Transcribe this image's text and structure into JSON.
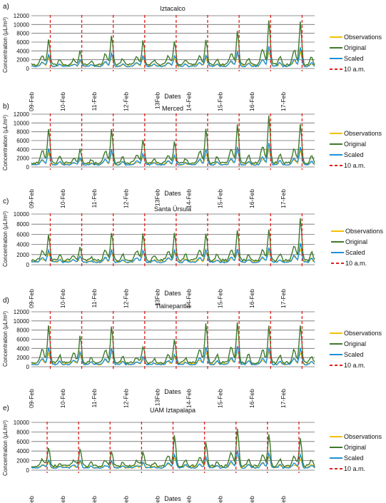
{
  "ylabel": "Concentration (µL/m³)",
  "xlabel": "Dates",
  "x_ticks": [
    "09-Feb",
    "10-Feb",
    "11-Feb",
    "12-Feb",
    "13Feb",
    "14-Feb",
    "15-Feb",
    "16-Feb",
    "17-Feb"
  ],
  "legend": [
    "Observations",
    "Original",
    "Scaled",
    "10 a.m."
  ],
  "colors": {
    "observations": "#f5c000",
    "original": "#3e7a2c",
    "scaled": "#1f8fd8",
    "ten_am": "#e0201b",
    "grid": "#6b6b6b"
  },
  "chart_data": [
    {
      "type": "line",
      "label": "a)",
      "title": "Iztacalco",
      "ylim": [
        0,
        12000
      ],
      "yticks": [
        0,
        2000,
        4000,
        6000,
        8000,
        10000,
        12000
      ],
      "peaks": [
        6400,
        3500,
        7200,
        6000,
        6000,
        6300,
        8400,
        11200,
        10700
      ],
      "vline_days": [
        0.6,
        1.6,
        2.6,
        3.6,
        4.6,
        5.6,
        6.6,
        7.6,
        8.6
      ]
    },
    {
      "type": "line",
      "label": "b)",
      "title": "Merced",
      "ylim": [
        0,
        12000
      ],
      "yticks": [
        0,
        2000,
        4000,
        6000,
        8000,
        10000,
        12000
      ],
      "peaks": [
        8700,
        3600,
        8300,
        6000,
        5500,
        8500,
        9600,
        11800,
        10000
      ],
      "vline_days": [
        0.6,
        1.6,
        2.6,
        3.6,
        4.6,
        5.6,
        6.6,
        7.6,
        8.6
      ]
    },
    {
      "type": "line",
      "label": "c)",
      "title": "Santa Úrsula",
      "ylim": [
        0,
        10000
      ],
      "yticks": [
        0,
        2000,
        4000,
        6000,
        8000,
        10000
      ],
      "peaks": [
        5800,
        3000,
        6000,
        5800,
        6000,
        6000,
        6300,
        6800,
        9200
      ],
      "vline_days": [
        0.6,
        1.6,
        2.6,
        3.6,
        4.6,
        5.6,
        6.6,
        7.6,
        8.6
      ]
    },
    {
      "type": "line",
      "label": "d)",
      "title": "Tlalnepantla",
      "ylim": [
        0,
        12000
      ],
      "yticks": [
        0,
        2000,
        4000,
        6000,
        8000,
        10000,
        12000
      ],
      "peaks": [
        8800,
        6700,
        8600,
        4000,
        5500,
        9500,
        10000,
        8800,
        8800
      ],
      "vline_days": [
        0.6,
        1.6,
        2.6,
        3.6,
        4.6,
        5.6,
        6.6,
        7.6,
        8.6
      ]
    },
    {
      "type": "line",
      "label": "e)",
      "title": "UAM Iztapalapa",
      "ylim": [
        0,
        10000
      ],
      "yticks": [
        0,
        2000,
        4000,
        6000,
        8000,
        10000
      ],
      "peaks": [
        4000,
        3700,
        3500,
        3100,
        7000,
        5300,
        8800,
        7500,
        6600
      ],
      "vline_days": [
        0.5,
        1.5,
        2.5,
        3.5,
        4.5,
        5.5,
        6.5,
        7.5,
        8.5
      ]
    }
  ]
}
